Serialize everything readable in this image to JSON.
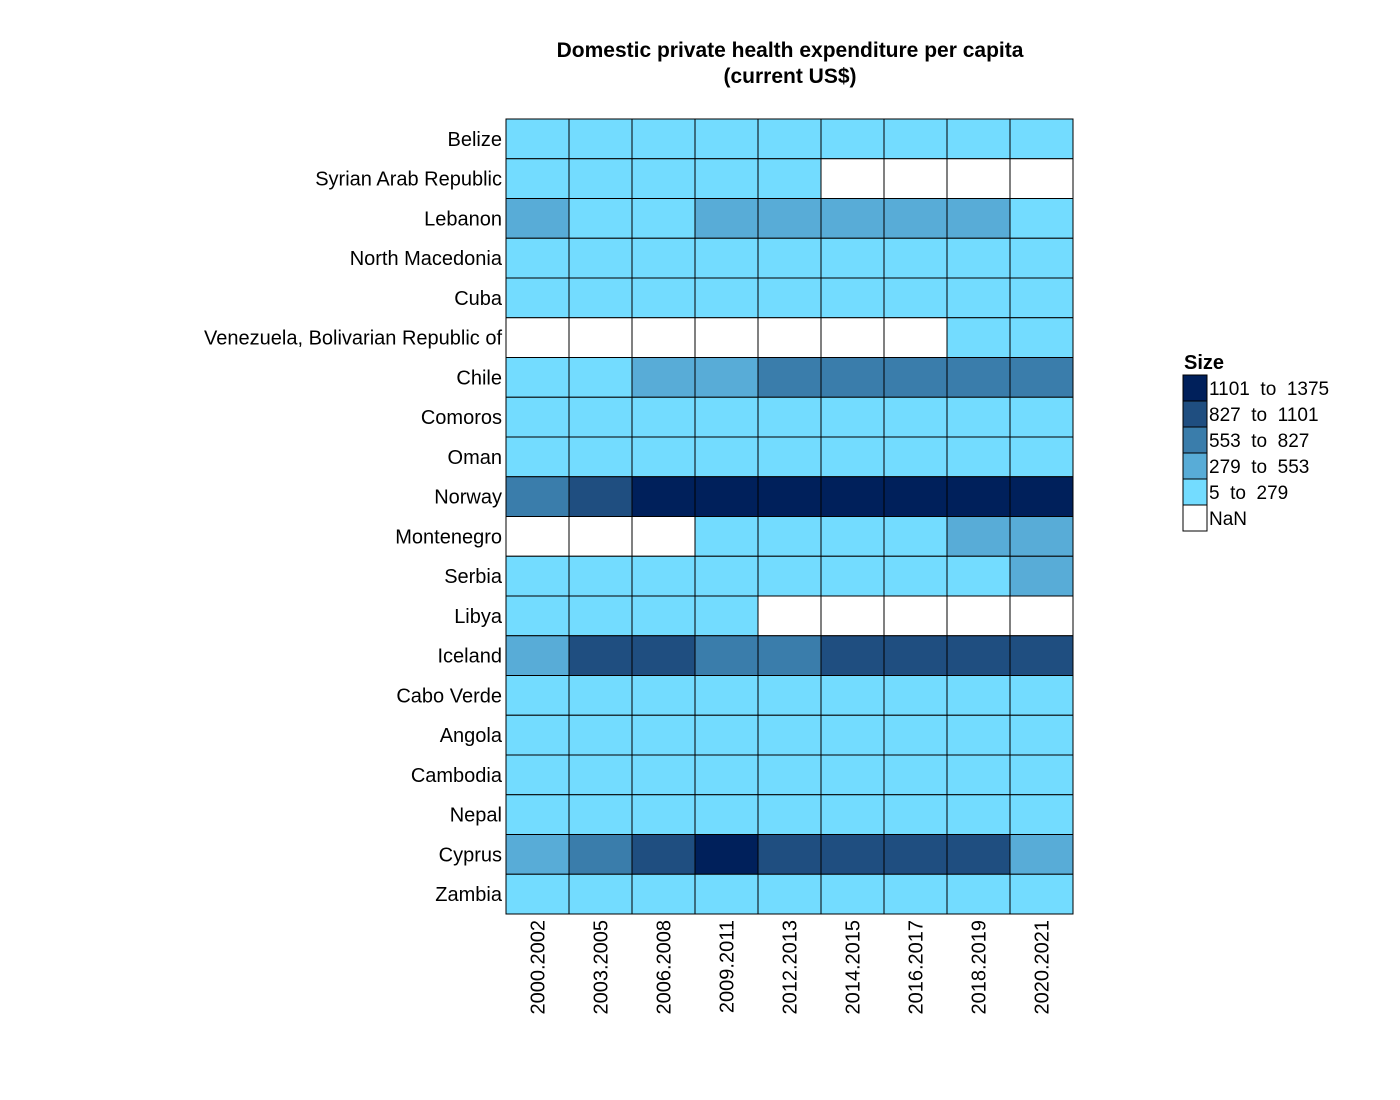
{
  "chart_data": {
    "type": "heatmap",
    "title": "Domestic private health expenditure per capita",
    "subtitle": "(current US$)",
    "rows": [
      "Belize",
      "Syrian Arab Republic",
      "Lebanon",
      "North Macedonia",
      "Cuba",
      "Venezuela, Bolivarian Republic of",
      "Chile",
      "Comoros",
      "Oman",
      "Norway",
      "Montenegro",
      "Serbia",
      "Libya",
      "Iceland",
      "Cabo Verde",
      "Angola",
      "Cambodia",
      "Nepal",
      "Cyprus",
      "Zambia"
    ],
    "columns": [
      "2000.2002",
      "2003.2005",
      "2006.2008",
      "2009.2011",
      "2012.2013",
      "2014.2015",
      "2016.2017",
      "2018.2019",
      "2020.2021"
    ],
    "bins": [
      {
        "label": "1101  to  1375",
        "color": "#00205b"
      },
      {
        "label": "827  to  1101",
        "color": "#1f4e80"
      },
      {
        "label": "553  to  827",
        "color": "#3a7dab"
      },
      {
        "label": "279  to  553",
        "color": "#58acd7"
      },
      {
        "label": "5  to  279",
        "color": "#73dcff"
      },
      {
        "label": "NaN",
        "color": "#ffffff"
      }
    ],
    "cells_bin_index": [
      [
        4,
        4,
        4,
        4,
        4,
        4,
        4,
        4,
        4
      ],
      [
        4,
        4,
        4,
        4,
        4,
        5,
        5,
        5,
        5
      ],
      [
        3,
        4,
        4,
        3,
        3,
        3,
        3,
        3,
        4
      ],
      [
        4,
        4,
        4,
        4,
        4,
        4,
        4,
        4,
        4
      ],
      [
        4,
        4,
        4,
        4,
        4,
        4,
        4,
        4,
        4
      ],
      [
        5,
        5,
        5,
        5,
        5,
        5,
        5,
        4,
        4
      ],
      [
        4,
        4,
        3,
        3,
        2,
        2,
        2,
        2,
        2
      ],
      [
        4,
        4,
        4,
        4,
        4,
        4,
        4,
        4,
        4
      ],
      [
        4,
        4,
        4,
        4,
        4,
        4,
        4,
        4,
        4
      ],
      [
        2,
        1,
        0,
        0,
        0,
        0,
        0,
        0,
        0
      ],
      [
        5,
        5,
        5,
        4,
        4,
        4,
        4,
        3,
        3
      ],
      [
        4,
        4,
        4,
        4,
        4,
        4,
        4,
        4,
        3
      ],
      [
        4,
        4,
        4,
        4,
        5,
        5,
        5,
        5,
        5
      ],
      [
        3,
        1,
        1,
        2,
        2,
        1,
        1,
        1,
        1
      ],
      [
        4,
        4,
        4,
        4,
        4,
        4,
        4,
        4,
        4
      ],
      [
        4,
        4,
        4,
        4,
        4,
        4,
        4,
        4,
        4
      ],
      [
        4,
        4,
        4,
        4,
        4,
        4,
        4,
        4,
        4
      ],
      [
        4,
        4,
        4,
        4,
        4,
        4,
        4,
        4,
        4
      ],
      [
        3,
        2,
        1,
        0,
        1,
        1,
        1,
        1,
        3
      ],
      [
        4,
        4,
        4,
        4,
        4,
        4,
        4,
        4,
        4
      ]
    ],
    "legend": {
      "title": "Size",
      "position": "right"
    }
  }
}
